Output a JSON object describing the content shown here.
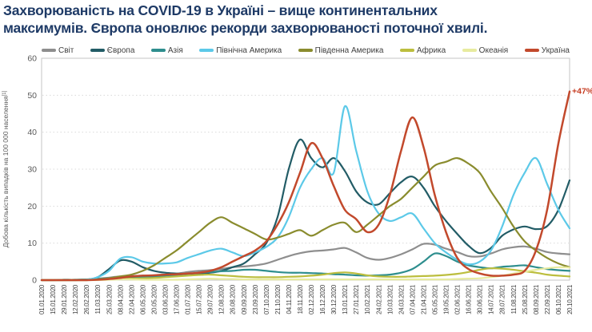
{
  "title": {
    "line1": "Захворюваність на COVID-19 в Україні – вище континентальних",
    "line2": "максимумів. Європа оновлює рекорди захворюваності поточної хвилі."
  },
  "colors": {
    "title_text": "#1e3a66",
    "axis_label_text": "#595959",
    "tick_text": "#404040",
    "grid": "#d9d9d9",
    "plot_border": "#c6c6c6",
    "background": "#ffffff"
  },
  "chart_data": {
    "type": "line",
    "title": "Захворюваність на COVID-19 в Україні – вище континентальних максимумів. Європа оновлює рекорди захворюваності поточної хвилі.",
    "xlabel": "",
    "ylabel": "Добова кількість випадків на 100 000 населення",
    "ylabel_footnote": "[1]",
    "ylim": [
      0,
      60
    ],
    "yticks": [
      0,
      10,
      20,
      30,
      40,
      50,
      60
    ],
    "grid": "horizontal-dotted",
    "legend_position": "top",
    "x": [
      "01.01.2020",
      "15.01.2020",
      "29.01.2020",
      "12.02.2020",
      "26.02.2020",
      "11.03.2020",
      "25.03.2020",
      "08.04.2020",
      "22.04.2020",
      "06.05.2020",
      "20.05.2020",
      "03.06.2020",
      "17.06.2020",
      "01.07.2020",
      "15.07.2020",
      "29.07.2020",
      "12.08.2020",
      "26.08.2020",
      "09.09.2020",
      "23.09.2020",
      "07.10.2020",
      "21.10.2020",
      "04.11.2020",
      "18.11.2020",
      "02.12.2020",
      "16.12.2020",
      "30.12.2020",
      "13.01.2021",
      "27.01.2021",
      "10.02.2021",
      "24.02.2021",
      "10.03.2021",
      "24.03.2021",
      "07.04.2021",
      "21.04.2021",
      "05.05.2021",
      "19.05.2021",
      "02.06.2021",
      "16.06.2021",
      "30.06.2021",
      "14.07.2021",
      "28.07.2021",
      "11.08.2021",
      "25.08.2021",
      "08.09.2021",
      "22.09.2021",
      "06.10.2021",
      "20.10.2021"
    ],
    "series": [
      {
        "name": "Світ",
        "color": "#8e8e8e",
        "values": [
          0,
          0,
          0.1,
          0.1,
          0.2,
          0.4,
          0.7,
          1,
          1.1,
          1.2,
          1.3,
          1.5,
          1.7,
          2.2,
          2.5,
          2.7,
          3,
          3.5,
          3.7,
          4,
          4.5,
          5.5,
          6.5,
          7.3,
          7.8,
          8,
          8.3,
          8.7,
          7.5,
          6,
          5.5,
          6,
          7,
          8.3,
          9.8,
          9.6,
          8.5,
          7.6,
          6.5,
          6.4,
          7.2,
          8.3,
          8.9,
          9.1,
          8.5,
          7.6,
          7.2,
          7
        ]
      },
      {
        "name": "Європа",
        "color": "#225c66",
        "values": [
          0,
          0,
          0,
          0,
          0.1,
          0.8,
          3,
          5.3,
          5,
          3.5,
          2.5,
          2,
          1.8,
          1.7,
          1.8,
          2,
          2.5,
          3.5,
          4.5,
          7,
          10,
          17,
          30,
          38,
          33,
          30.5,
          33,
          29.5,
          24,
          21,
          20.5,
          23.5,
          26.5,
          28,
          25,
          20,
          16,
          12.5,
          9.3,
          7.3,
          8.7,
          12,
          13.7,
          14.5,
          13.8,
          14.6,
          19,
          27
        ]
      },
      {
        "name": "Азія",
        "color": "#2e8e8e",
        "values": [
          0,
          0,
          0.1,
          0.1,
          0.2,
          0.3,
          0.5,
          0.7,
          0.8,
          0.9,
          1,
          1.2,
          1.4,
          1.7,
          2,
          2.2,
          2.4,
          2.5,
          2.8,
          2.8,
          2.5,
          2.2,
          2,
          2,
          1.9,
          1.8,
          1.6,
          1.5,
          1.3,
          1.2,
          1.3,
          1.5,
          2,
          3,
          5,
          7.2,
          6.5,
          5,
          4,
          3.5,
          3.2,
          3.6,
          3.8,
          4,
          3.5,
          3,
          2.7,
          2.5
        ]
      },
      {
        "name": "Північна Америка",
        "color": "#5cc9e8",
        "values": [
          0,
          0,
          0,
          0,
          0.1,
          0.8,
          2.5,
          5.8,
          6.2,
          5,
          4.5,
          4.5,
          4.8,
          6,
          7,
          8,
          8.5,
          7.5,
          6.5,
          7.5,
          9,
          11.5,
          17,
          25,
          30,
          33,
          29,
          47,
          35,
          24,
          18,
          16,
          17,
          18,
          14,
          10,
          7.5,
          5.5,
          4.3,
          5,
          8,
          14.5,
          23,
          29,
          33,
          26,
          19,
          14
        ]
      },
      {
        "name": "Південна Америка",
        "color": "#8a8c2e",
        "values": [
          0,
          0,
          0,
          0,
          0,
          0.2,
          0.5,
          1,
          1.5,
          2.5,
          4,
          6,
          8,
          10.5,
          13,
          15.5,
          17,
          15.5,
          14,
          12.5,
          11,
          11.5,
          12.5,
          13.5,
          12,
          13.5,
          15,
          15.5,
          13,
          15,
          17.5,
          20,
          22,
          25,
          28,
          31,
          32,
          33,
          31.5,
          29,
          24,
          19.5,
          14.5,
          10.5,
          8,
          6,
          4.5,
          3.5
        ]
      },
      {
        "name": "Африка",
        "color": "#bcbe3e",
        "values": [
          0,
          0,
          0,
          0,
          0,
          0.1,
          0.2,
          0.3,
          0.4,
          0.5,
          0.6,
          0.8,
          1,
          1.2,
          1.4,
          1.5,
          1.3,
          1.1,
          0.9,
          0.8,
          0.8,
          0.8,
          0.9,
          1,
          1.2,
          1.5,
          1.9,
          2.1,
          1.8,
          1.3,
          1,
          0.9,
          0.9,
          1,
          1.1,
          1.2,
          1.4,
          1.7,
          2.2,
          2.8,
          3.2,
          3.1,
          2.8,
          2.4,
          2,
          1.5,
          1.2,
          1
        ]
      },
      {
        "name": "Океанія",
        "color": "#e7eb9f",
        "values": [
          0,
          0,
          0,
          0,
          0,
          0,
          0.1,
          0.2,
          0.2,
          0.1,
          0.1,
          0.1,
          0.1,
          0.2,
          0.3,
          0.4,
          0.3,
          0.3,
          0.2,
          0.2,
          0.2,
          0.2,
          0.2,
          0.2,
          0.2,
          0.2,
          0.2,
          0.2,
          0.2,
          0.2,
          0.2,
          0.2,
          0.2,
          0.2,
          0.2,
          0.2,
          0.2,
          0.3,
          0.4,
          0.5,
          0.8,
          1.2,
          1.8,
          2.3,
          2.8,
          3.2,
          3.5,
          3.4
        ]
      },
      {
        "name": "Україна",
        "color": "#c2492c",
        "values": [
          0,
          0,
          0,
          0,
          0,
          0.1,
          0.3,
          0.6,
          1,
          1.2,
          1.3,
          1.5,
          1.6,
          1.8,
          2,
          2.5,
          3.5,
          5,
          6.5,
          8,
          10.5,
          15,
          21,
          29,
          37,
          33,
          25.5,
          19,
          16.5,
          13,
          15,
          23,
          35,
          44,
          36,
          23,
          13,
          6,
          3,
          1.8,
          1.2,
          1.2,
          1.5,
          2.5,
          8,
          19,
          37,
          51
        ]
      }
    ],
    "annotation": {
      "text": "+47%",
      "x": "20.10.2021",
      "y": 51,
      "color": "#c63c22"
    }
  }
}
